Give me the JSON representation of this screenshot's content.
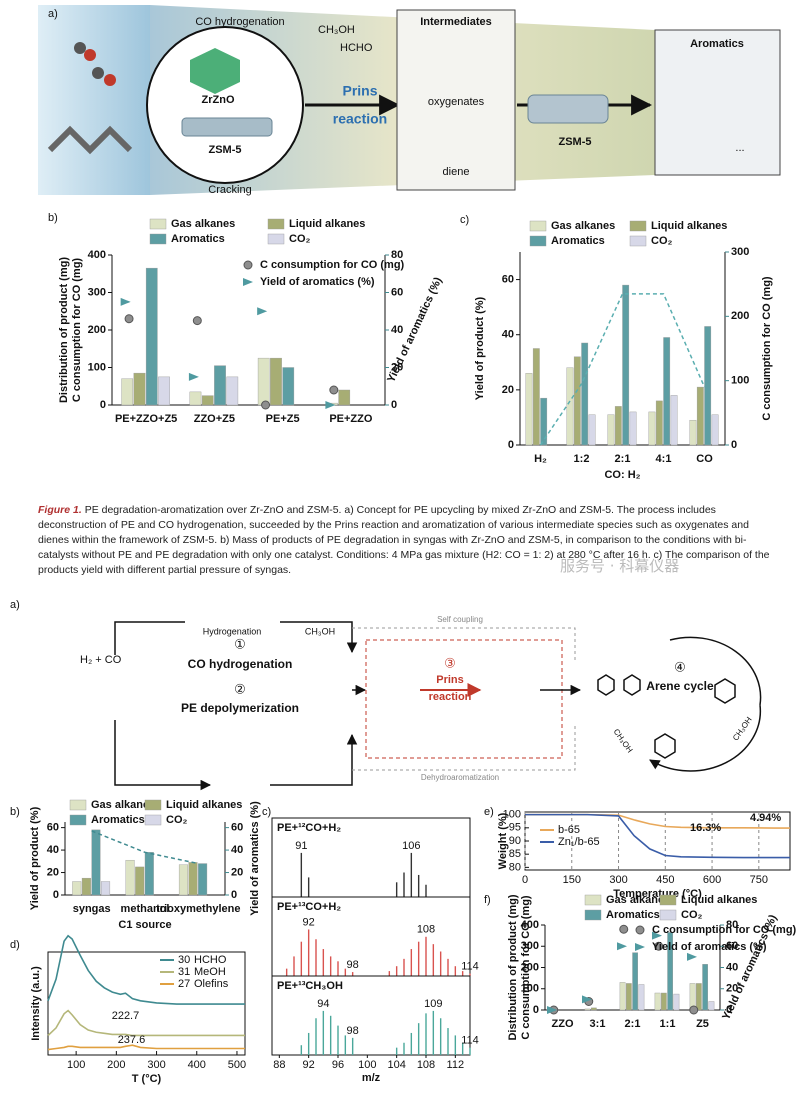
{
  "figure1": {
    "panel_a": {
      "label": "a)",
      "co_hydrogenation": "CO hydrogenation",
      "catalyst_1": "ZrZnO",
      "catalyst_2": "ZSM-5",
      "cracking": "Cracking",
      "methanol": "CH₃OH",
      "formaldehyde": "HCHO",
      "prins_1": "Prins",
      "prins_2": "reaction",
      "intermediates": "Intermediates",
      "oxygenates": "oxygenates",
      "diene": "diene",
      "zeolite": "ZSM-5",
      "aromatics": "Aromatics",
      "ellipsis": "..."
    },
    "panel_b": {
      "label": "b)",
      "type": "bar",
      "categories": [
        "PE+ZZO+Z5",
        "ZZO+Z5",
        "PE+Z5",
        "PE+ZZO"
      ],
      "series": [
        {
          "name": "Gas alkanes",
          "color": "#dde3c4",
          "values": [
            70,
            35,
            125,
            5
          ]
        },
        {
          "name": "Liquid alkanes",
          "color": "#a7ad74",
          "values": [
            85,
            25,
            125,
            40
          ]
        },
        {
          "name": "Aromatics",
          "color": "#5d9ea3",
          "values": [
            365,
            105,
            100,
            0
          ]
        },
        {
          "name": "CO₂",
          "color": "#d7d8e8",
          "values": [
            75,
            75,
            0,
            0
          ]
        },
        {
          "name": "C consumption for CO (mg)",
          "color": "#8e8e8e",
          "kind": "points",
          "values": [
            230,
            225,
            0,
            40
          ]
        },
        {
          "name": "Yield of aromatics (%)",
          "color": "#4f9aa0",
          "kind": "arrows",
          "axis": "y2",
          "values": [
            55,
            15,
            50,
            0
          ]
        }
      ],
      "ylim": [
        0,
        400
      ],
      "yticks": [
        0,
        100,
        200,
        300,
        400
      ],
      "ylabel": "Distribution of product (mg)",
      "ylabel2": "C consumption for CO (mg)",
      "y2lim": [
        0,
        80
      ],
      "y2ticks": [
        0,
        20,
        40,
        60,
        80
      ],
      "y2label": "Yield of aromatics (%)"
    },
    "panel_c": {
      "label": "c)",
      "type": "bar",
      "categories": [
        "H₂",
        "1:2",
        "2:1",
        "4:1",
        "CO"
      ],
      "series": [
        {
          "name": "Gas alkanes",
          "color": "#dde3c4",
          "values": [
            26,
            28,
            11,
            12,
            9
          ]
        },
        {
          "name": "Liquid alkanes",
          "color": "#a7ad74",
          "values": [
            35,
            32,
            14,
            16,
            21
          ]
        },
        {
          "name": "Aromatics",
          "color": "#5d9ea3",
          "values": [
            17,
            37,
            58,
            39,
            43
          ]
        },
        {
          "name": "CO₂",
          "color": "#d7d8e8",
          "values": [
            0,
            11,
            12,
            18,
            11
          ]
        },
        {
          "color": "#5aaeb0",
          "kind": "line",
          "axis": "y2",
          "values": [
            0,
            95,
            235,
            235,
            90
          ]
        }
      ],
      "ylim": [
        0,
        70
      ],
      "yticks": [
        0,
        20,
        40,
        60
      ],
      "ylabel": "Yield of product (%)",
      "y2lim": [
        0,
        300
      ],
      "y2ticks": [
        0,
        100,
        200,
        300
      ],
      "y2label": "C consumption for CO (mg)",
      "xlabel": "CO: H₂"
    }
  },
  "caption": {
    "figure_label": "Figure 1.",
    "text": "PE degradation-aromatization over Zr-ZnO and ZSM-5. a) Concept for PE upcycling by mixed Zr-ZnO and ZSM-5. The process includes deconstruction of PE and CO hydrogenation, succeeded by the Prins reaction and aromatization of various intermediate species such as oxygenates and dienes within the framework of ZSM-5. b) Mass of products of PE degradation in syngas with Zr-ZnO and ZSM-5, in comparison to the conditions with bi-catalysts without PE and PE degradation with only one catalyst. Conditions: 4 MPa gas mixture (H2: CO = 1: 2) at 280 °C after 16 h. c) The comparison of the products yield with different partial pressure of syngas.",
    "watermark": "服务号 · 科幕仪器"
  },
  "figure2": {
    "panel_a": {
      "label": "a)",
      "syngas": "H₂ + CO",
      "hydrogenation": "Hydrogenation",
      "methanol": "CH₃OH",
      "step_1": "①",
      "co_hydrogenation": "CO hydrogenation",
      "step_2": "②",
      "pe_depolymerization": "PE depolymerization",
      "self_coupling": "Self coupling",
      "step_3": "③",
      "prins_1": "Prins",
      "prins_2": "reaction",
      "step_4": "④",
      "arene_cycle": "Arene cycle",
      "dehydroaromatization": "Dehydroaromatization",
      "methanol_2": "CH₃OH",
      "methanol_3": "CH₃OH"
    },
    "panel_b": {
      "label": "b)",
      "type": "bar",
      "categories": [
        "syngas",
        "methanol",
        "trioxymethylene"
      ],
      "series": [
        {
          "name": "Gas alkanes",
          "color": "#dde3c4",
          "values": [
            12,
            31,
            27
          ]
        },
        {
          "name": "Liquid alkanes",
          "color": "#a7ad74",
          "values": [
            15,
            25,
            29
          ]
        },
        {
          "name": "Aromatics",
          "color": "#5d9ea3",
          "values": [
            58,
            38,
            28
          ]
        },
        {
          "name": "CO₂",
          "color": "#d7d8e8",
          "values": [
            12,
            0,
            0
          ]
        },
        {
          "color": "#3f8a90",
          "kind": "line",
          "axis": "y2",
          "values": [
            57,
            38,
            28
          ]
        }
      ],
      "ylim": [
        0,
        65
      ],
      "yticks": [
        0,
        20,
        40,
        60
      ],
      "ylabel": "Yield of product (%)",
      "y2lim": [
        0,
        65
      ],
      "y2ticks": [
        0,
        20,
        40,
        60
      ],
      "y2label": "Yield of aromatics (%)",
      "xlabel": "C1 source"
    },
    "panel_c": {
      "label": "c)",
      "type": "stick",
      "xlim": [
        87,
        114
      ],
      "xticks": [
        88,
        92,
        96,
        100,
        104,
        108,
        112
      ],
      "ylim": [
        0,
        100
      ],
      "xlabel": "m/z",
      "panels": [
        {
          "title": "PE+¹²CO+H₂",
          "color": "#333333",
          "x": [
            91,
            92,
            104,
            105,
            106,
            107,
            108
          ],
          "values": [
            90,
            40,
            30,
            50,
            90,
            45,
            25
          ],
          "peak_labels": [
            91,
            106
          ]
        },
        {
          "title": "PE+¹³CO+H₂",
          "color": "#d9534f",
          "x": [
            89,
            90,
            91,
            92,
            93,
            94,
            95,
            96,
            97,
            98,
            103,
            104,
            105,
            106,
            107,
            108,
            109,
            110,
            111,
            112,
            113,
            114
          ],
          "values": [
            15,
            40,
            70,
            95,
            75,
            55,
            40,
            30,
            15,
            8,
            10,
            20,
            35,
            55,
            70,
            80,
            65,
            50,
            35,
            20,
            10,
            5
          ],
          "peak_labels": [
            92,
            98,
            108,
            114
          ]
        },
        {
          "title": "PE+¹³CH₃OH",
          "color": "#4aa79a",
          "x": [
            91,
            92,
            93,
            94,
            95,
            96,
            97,
            98,
            104,
            105,
            106,
            107,
            108,
            109,
            110,
            111,
            112,
            113,
            114
          ],
          "values": [
            20,
            45,
            75,
            90,
            80,
            60,
            40,
            35,
            15,
            25,
            45,
            65,
            85,
            90,
            75,
            55,
            40,
            25,
            15
          ],
          "peak_labels": [
            94,
            98,
            109,
            114
          ]
        }
      ]
    },
    "panel_d": {
      "label": "d)",
      "type": "line",
      "ylabel": "Intensity (a.u.)",
      "xlabel": "T (°C)",
      "xlim": [
        30,
        520
      ],
      "xticks": [
        100,
        200,
        300,
        400,
        500
      ],
      "ylim": [
        -5,
        90
      ],
      "x": [
        30,
        50,
        70,
        80,
        90,
        110,
        130,
        150,
        170,
        190,
        210,
        222.7,
        240,
        260,
        300,
        350,
        400,
        450,
        500,
        520
      ],
      "series": [
        {
          "name": "HCHO",
          "mz": 30,
          "color": "#3f8a90",
          "values": [
            20,
            40,
            75,
            80,
            77,
            62,
            48,
            38,
            32,
            28,
            26,
            27,
            22,
            20,
            18,
            17,
            17,
            17,
            17,
            17
          ]
        },
        {
          "name": "MeOH",
          "mz": 31,
          "color": "#b5b77a",
          "values": [
            5,
            12,
            25,
            28,
            24,
            15,
            10,
            8,
            7,
            6,
            6,
            6,
            5,
            5,
            5,
            5,
            5,
            5,
            5,
            5
          ]
        },
        {
          "name": "Olefins",
          "mz": 27,
          "color": "#e0a040",
          "values": [
            0,
            1,
            2,
            3,
            3,
            2,
            2,
            2,
            2,
            2,
            2,
            3,
            4,
            2,
            1,
            1,
            1,
            1,
            1,
            1
          ]
        }
      ],
      "peak_labels": [
        222.7,
        237.6
      ]
    },
    "panel_e": {
      "label": "e)",
      "type": "line",
      "ylabel": "Weight (%)",
      "xlabel": "Temperature (°C)",
      "xlim": [
        0,
        850
      ],
      "xticks": [
        0,
        150,
        300,
        450,
        600,
        750
      ],
      "ylim": [
        79,
        101
      ],
      "yticks": [
        80,
        85,
        90,
        95,
        100
      ],
      "grid_x": true,
      "x": [
        0,
        100,
        200,
        300,
        350,
        400,
        450,
        500,
        600,
        700,
        800,
        850
      ],
      "series": [
        {
          "name": "b-65",
          "color": "#e8a85a",
          "values": [
            100,
            100,
            100,
            99.8,
            98,
            96.5,
            95.5,
            95.2,
            95,
            95,
            94.9,
            94.9
          ]
        },
        {
          "name": "Zn₁/b-65",
          "color": "#3a5da8",
          "values": [
            100,
            100,
            100,
            99.5,
            92,
            87,
            84.5,
            84,
            83.8,
            83.7,
            83.7,
            83.7
          ]
        }
      ],
      "annotations": [
        {
          "value": 4.94,
          "label": "4.94%"
        },
        {
          "value": 16.3,
          "label": "16.3%"
        }
      ]
    },
    "panel_f": {
      "label": "f)",
      "type": "bar",
      "categories": [
        "ZZO",
        "3:1",
        "2:1",
        "1:1",
        "Z5"
      ],
      "series": [
        {
          "name": "Gas alkanes",
          "color": "#dde3c4",
          "values": [
            0,
            5,
            130,
            80,
            125
          ]
        },
        {
          "name": "Liquid alkanes",
          "color": "#a7ad74",
          "values": [
            0,
            10,
            125,
            80,
            125
          ]
        },
        {
          "name": "Aromatics",
          "color": "#5d9ea3",
          "values": [
            0,
            0,
            270,
            365,
            215
          ]
        },
        {
          "name": "CO₂",
          "color": "#d7d8e8",
          "values": [
            0,
            0,
            120,
            75,
            40
          ]
        },
        {
          "name": "C consumption for CO (mg)",
          "color": "#8e8e8e",
          "kind": "points",
          "values": [
            0,
            40,
            380,
            300,
            0
          ]
        },
        {
          "name": "Yield of aromatics (%)",
          "color": "#4f9aa0",
          "kind": "arrows",
          "axis": "y2",
          "values": [
            0,
            10,
            60,
            70,
            50
          ]
        }
      ],
      "ylim": [
        0,
        400
      ],
      "yticks": [
        0,
        100,
        200,
        300,
        400
      ],
      "ylabel": "Distribution of product (mg)",
      "ylabel2": "C consumption for CO (mg)",
      "y2lim": [
        0,
        80
      ],
      "y2ticks": [
        0,
        20,
        40,
        60,
        80
      ],
      "y2label": "Yield of aromatics (%)"
    }
  }
}
